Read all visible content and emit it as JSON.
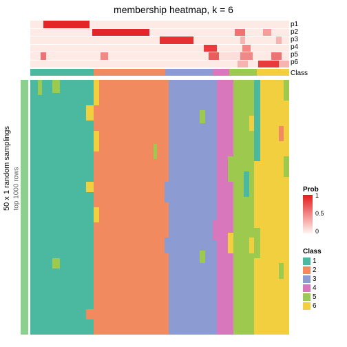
{
  "title": "membership heatmap, k = 6",
  "left_label_outer": "50 x 1 random samplings",
  "left_label_inner": "top 1000 rows",
  "row_labels": [
    "p1",
    "p2",
    "p3",
    "p4",
    "p5",
    "p6",
    "Class"
  ],
  "prob_legend": {
    "title": "Prob",
    "ticks": [
      "1",
      "0.5",
      "0"
    ]
  },
  "class_legend": {
    "title": "Class",
    "items": [
      "1",
      "2",
      "3",
      "4",
      "5",
      "6"
    ]
  },
  "colors": {
    "class": {
      "1": "#4bb9a0",
      "2": "#f28a5f",
      "3": "#8c9bd1",
      "4": "#d977bd",
      "5": "#9ec94f",
      "6": "#f2cf3f"
    },
    "prob_low": "#fff5f0",
    "prob_high": "#e31a1c",
    "left_bar": "#8ccf8e",
    "bg": "#ffffff"
  },
  "class_band": [
    {
      "cls": "1",
      "w": 24.5
    },
    {
      "cls": "2",
      "w": 27.5
    },
    {
      "cls": "3",
      "w": 18.5
    },
    {
      "cls": "4",
      "w": 6.5
    },
    {
      "cls": "5",
      "w": 10.5
    },
    {
      "cls": "6",
      "w": 12.5
    }
  ],
  "prob_rows": {
    "p1": [
      {
        "v": 0.05,
        "w": 5
      },
      {
        "v": 0.95,
        "w": 18
      },
      {
        "v": 0.05,
        "w": 77
      }
    ],
    "p2": [
      {
        "v": 0.05,
        "w": 24
      },
      {
        "v": 0.95,
        "w": 22
      },
      {
        "v": 0.05,
        "w": 33
      },
      {
        "v": 0.6,
        "w": 4
      },
      {
        "v": 0.05,
        "w": 7
      },
      {
        "v": 0.4,
        "w": 3
      },
      {
        "v": 0.05,
        "w": 7
      }
    ],
    "p3": [
      {
        "v": 0.05,
        "w": 50
      },
      {
        "v": 0.9,
        "w": 13
      },
      {
        "v": 0.05,
        "w": 18
      },
      {
        "v": 0.3,
        "w": 2
      },
      {
        "v": 0.05,
        "w": 12
      },
      {
        "v": 0.3,
        "w": 2
      },
      {
        "v": 0.05,
        "w": 3
      }
    ],
    "p4": [
      {
        "v": 0.05,
        "w": 67
      },
      {
        "v": 0.85,
        "w": 5
      },
      {
        "v": 0.05,
        "w": 10
      },
      {
        "v": 0.5,
        "w": 3
      },
      {
        "v": 0.05,
        "w": 15
      }
    ],
    "p5": [
      {
        "v": 0.05,
        "w": 4
      },
      {
        "v": 0.6,
        "w": 2
      },
      {
        "v": 0.05,
        "w": 21
      },
      {
        "v": 0.5,
        "w": 3
      },
      {
        "v": 0.05,
        "w": 39
      },
      {
        "v": 0.7,
        "w": 4
      },
      {
        "v": 0.1,
        "w": 8
      },
      {
        "v": 0.5,
        "w": 5
      },
      {
        "v": 0.05,
        "w": 7
      },
      {
        "v": 0.6,
        "w": 4
      },
      {
        "v": 0.05,
        "w": 3
      }
    ],
    "p6": [
      {
        "v": 0.05,
        "w": 80
      },
      {
        "v": 0.3,
        "w": 4
      },
      {
        "v": 0.05,
        "w": 4
      },
      {
        "v": 0.85,
        "w": 8
      },
      {
        "v": 0.3,
        "w": 4
      }
    ]
  },
  "heat_columns": [
    {
      "w": 3.0,
      "stack": [
        {
          "cls": "1",
          "h": 100
        }
      ]
    },
    {
      "w": 1.5,
      "stack": [
        {
          "cls": "5",
          "h": 6
        },
        {
          "cls": "1",
          "h": 94
        }
      ]
    },
    {
      "w": 4.0,
      "stack": [
        {
          "cls": "1",
          "h": 100
        }
      ]
    },
    {
      "w": 3.0,
      "stack": [
        {
          "cls": "5",
          "h": 5
        },
        {
          "cls": "1",
          "h": 65
        },
        {
          "cls": "5",
          "h": 4
        },
        {
          "cls": "1",
          "h": 26
        }
      ]
    },
    {
      "w": 10.0,
      "stack": [
        {
          "cls": "1",
          "h": 100
        }
      ]
    },
    {
      "w": 3.0,
      "stack": [
        {
          "cls": "1",
          "h": 10
        },
        {
          "cls": "6",
          "h": 6
        },
        {
          "cls": "1",
          "h": 24
        },
        {
          "cls": "6",
          "h": 4
        },
        {
          "cls": "1",
          "h": 46
        },
        {
          "cls": "2",
          "h": 4
        },
        {
          "cls": "1",
          "h": 6
        }
      ]
    },
    {
      "w": 2.0,
      "stack": [
        {
          "cls": "6",
          "h": 10
        },
        {
          "cls": "2",
          "h": 10
        },
        {
          "cls": "6",
          "h": 8
        },
        {
          "cls": "2",
          "h": 22
        },
        {
          "cls": "6",
          "h": 6
        },
        {
          "cls": "2",
          "h": 44
        }
      ]
    },
    {
      "w": 21.0,
      "stack": [
        {
          "cls": "2",
          "h": 100
        }
      ]
    },
    {
      "w": 1.5,
      "stack": [
        {
          "cls": "2",
          "h": 25
        },
        {
          "cls": "5",
          "h": 6
        },
        {
          "cls": "2",
          "h": 69
        }
      ]
    },
    {
      "w": 3.0,
      "stack": [
        {
          "cls": "2",
          "h": 100
        }
      ]
    },
    {
      "w": 1.5,
      "stack": [
        {
          "cls": "2",
          "h": 40
        },
        {
          "cls": "3",
          "h": 8
        },
        {
          "cls": "2",
          "h": 14
        },
        {
          "cls": "3",
          "h": 6
        },
        {
          "cls": "2",
          "h": 32
        }
      ]
    },
    {
      "w": 12.0,
      "stack": [
        {
          "cls": "3",
          "h": 100
        }
      ]
    },
    {
      "w": 2.0,
      "stack": [
        {
          "cls": "3",
          "h": 12
        },
        {
          "cls": "5",
          "h": 5
        },
        {
          "cls": "3",
          "h": 50
        },
        {
          "cls": "5",
          "h": 5
        },
        {
          "cls": "3",
          "h": 28
        }
      ]
    },
    {
      "w": 3.0,
      "stack": [
        {
          "cls": "3",
          "h": 100
        }
      ]
    },
    {
      "w": 1.5,
      "stack": [
        {
          "cls": "3",
          "h": 55
        },
        {
          "cls": "4",
          "h": 8
        },
        {
          "cls": "3",
          "h": 37
        }
      ]
    },
    {
      "w": 4.5,
      "stack": [
        {
          "cls": "4",
          "h": 100
        }
      ]
    },
    {
      "w": 2.0,
      "stack": [
        {
          "cls": "4",
          "h": 30
        },
        {
          "cls": "5",
          "h": 10
        },
        {
          "cls": "4",
          "h": 20
        },
        {
          "cls": "6",
          "h": 8
        },
        {
          "cls": "4",
          "h": 32
        }
      ]
    },
    {
      "w": 4.0,
      "stack": [
        {
          "cls": "5",
          "h": 100
        }
      ]
    },
    {
      "w": 2.0,
      "stack": [
        {
          "cls": "5",
          "h": 36
        },
        {
          "cls": "1",
          "h": 10
        },
        {
          "cls": "5",
          "h": 54
        }
      ]
    },
    {
      "w": 2.0,
      "stack": [
        {
          "cls": "5",
          "h": 14
        },
        {
          "cls": "6",
          "h": 6
        },
        {
          "cls": "5",
          "h": 42
        },
        {
          "cls": "6",
          "h": 6
        },
        {
          "cls": "5",
          "h": 32
        }
      ]
    },
    {
      "w": 2.5,
      "stack": [
        {
          "cls": "1",
          "h": 32
        },
        {
          "cls": "6",
          "h": 26
        },
        {
          "cls": "5",
          "h": 12
        },
        {
          "cls": "6",
          "h": 30
        }
      ]
    },
    {
      "w": 7.0,
      "stack": [
        {
          "cls": "6",
          "h": 100
        }
      ]
    },
    {
      "w": 2.0,
      "stack": [
        {
          "cls": "6",
          "h": 18
        },
        {
          "cls": "2",
          "h": 6
        },
        {
          "cls": "6",
          "h": 48
        },
        {
          "cls": "5",
          "h": 6
        },
        {
          "cls": "6",
          "h": 22
        }
      ]
    },
    {
      "w": 2.0,
      "stack": [
        {
          "cls": "5",
          "h": 8
        },
        {
          "cls": "6",
          "h": 22
        },
        {
          "cls": "5",
          "h": 8
        },
        {
          "cls": "6",
          "h": 62
        }
      ]
    }
  ]
}
